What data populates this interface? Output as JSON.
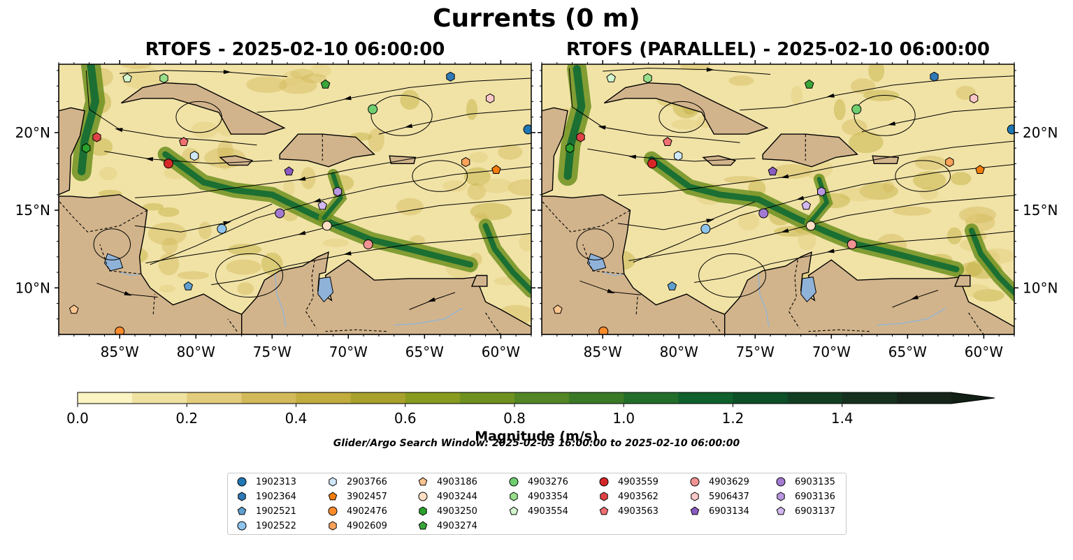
{
  "figure": {
    "title": "Currents (0 m)",
    "left_panel_title": "RTOFS - 2025-02-10 06:00:00",
    "right_panel_title": "RTOFS (PARALLEL) - 2025-02-10 06:00:00",
    "longitude_ticks": [
      "85°W",
      "80°W",
      "75°W",
      "70°W",
      "65°W",
      "60°W"
    ],
    "latitude_ticks": [
      "20°N",
      "15°N",
      "10°N"
    ],
    "colorbar": {
      "label": "Magnitude (m/s)",
      "ticks": [
        "0.0",
        "0.2",
        "0.4",
        "0.6",
        "0.8",
        "1.0",
        "1.2",
        "1.4"
      ],
      "colors": [
        "#fbf5c4",
        "#efe1a0",
        "#e3cd7c",
        "#d2b95a",
        "#c1ac3e",
        "#a8a12c",
        "#899b1e",
        "#6e9120",
        "#528624",
        "#3a7a26",
        "#226d2a",
        "#0f602c",
        "#0c4f28",
        "#123f24",
        "#16311f",
        "#16241a"
      ],
      "extend_color": "#111f14"
    },
    "search_window": "Glider/Argo Search Window: 2025-02-03 16:00:00 to 2025-02-10 06:00:00",
    "colors": {
      "land": "#d2b48c",
      "ocean_low": "#f1e3a6",
      "current_high": "#1b6f32",
      "lake": "#8fb2d8"
    }
  },
  "legend": [
    {
      "id": "1902313",
      "marker": "circle",
      "color": "#1f77b4"
    },
    {
      "id": "1902364",
      "marker": "hexagon",
      "color": "#2f79b6"
    },
    {
      "id": "1902521",
      "marker": "pentagon",
      "color": "#5f9fd0"
    },
    {
      "id": "1902522",
      "marker": "circle",
      "color": "#8ec4ec"
    },
    {
      "id": "2903766",
      "marker": "hexagon",
      "color": "#cfe7f7"
    },
    {
      "id": "3902457",
      "marker": "pentagon",
      "color": "#f27d0c"
    },
    {
      "id": "4902476",
      "marker": "circle",
      "color": "#ff8b2b"
    },
    {
      "id": "4902609",
      "marker": "hexagon",
      "color": "#fca25a"
    },
    {
      "id": "4903186",
      "marker": "pentagon",
      "color": "#fcc48e"
    },
    {
      "id": "4903244",
      "marker": "circle",
      "color": "#fde0c3"
    },
    {
      "id": "4903250",
      "marker": "hexagon",
      "color": "#2ca02c"
    },
    {
      "id": "4903274",
      "marker": "pentagon",
      "color": "#3aa63a"
    },
    {
      "id": "4903276",
      "marker": "circle",
      "color": "#6fcf6f"
    },
    {
      "id": "4903354",
      "marker": "hexagon",
      "color": "#98df8a"
    },
    {
      "id": "4903554",
      "marker": "pentagon",
      "color": "#d3f7cf"
    },
    {
      "id": "4903559",
      "marker": "circle",
      "color": "#d62728"
    },
    {
      "id": "4903562",
      "marker": "hexagon",
      "color": "#e04346"
    },
    {
      "id": "4903563",
      "marker": "pentagon",
      "color": "#ef6f72"
    },
    {
      "id": "4903629",
      "marker": "circle",
      "color": "#f29393"
    },
    {
      "id": "5906437",
      "marker": "hexagon",
      "color": "#fcc7c7"
    },
    {
      "id": "6903134",
      "marker": "pentagon",
      "color": "#8a5cbf"
    },
    {
      "id": "6903135",
      "marker": "circle",
      "color": "#a37ad1"
    },
    {
      "id": "6903136",
      "marker": "hexagon",
      "color": "#b996e0"
    },
    {
      "id": "6903137",
      "marker": "pentagon",
      "color": "#d2b8f0"
    }
  ],
  "floats": [
    {
      "id": "1902313",
      "lon": -58.2,
      "lat": 20.2
    },
    {
      "id": "1902364",
      "lon": -63.3,
      "lat": 23.6
    },
    {
      "id": "4903276",
      "lon": -68.4,
      "lat": 21.5
    },
    {
      "id": "4903274",
      "lon": -71.5,
      "lat": 23.1
    },
    {
      "id": "4903354",
      "lon": -82.1,
      "lat": 23.5
    },
    {
      "id": "4903554",
      "lon": -84.5,
      "lat": 23.5
    },
    {
      "id": "5906437",
      "lon": -60.7,
      "lat": 22.2
    },
    {
      "id": "4903562",
      "lon": -86.5,
      "lat": 19.7
    },
    {
      "id": "4903250",
      "lon": -87.2,
      "lat": 19.0
    },
    {
      "id": "4903563",
      "lon": -80.8,
      "lat": 19.4
    },
    {
      "id": "2903766",
      "lon": -80.1,
      "lat": 18.5
    },
    {
      "id": "4903559",
      "lon": -81.8,
      "lat": 18.0
    },
    {
      "id": "6903134",
      "lon": -73.9,
      "lat": 17.5
    },
    {
      "id": "6903135",
      "lon": -74.5,
      "lat": 14.8
    },
    {
      "id": "6903136",
      "lon": -70.7,
      "lat": 16.2
    },
    {
      "id": "6903137",
      "lon": -71.7,
      "lat": 15.3
    },
    {
      "id": "1902522",
      "lon": -78.3,
      "lat": 13.8
    },
    {
      "id": "4903244",
      "lon": -71.4,
      "lat": 14.0
    },
    {
      "id": "4903629",
      "lon": -68.7,
      "lat": 12.8
    },
    {
      "id": "4902609",
      "lon": -62.3,
      "lat": 18.1
    },
    {
      "id": "3902457",
      "lon": -60.3,
      "lat": 17.6
    },
    {
      "id": "1902521",
      "lon": -80.5,
      "lat": 10.1
    },
    {
      "id": "4903186",
      "lon": -88.0,
      "lat": 8.6
    },
    {
      "id": "4902476",
      "lon": -85.0,
      "lat": 7.2
    }
  ],
  "map_extent": {
    "lon": [
      -89,
      -58
    ],
    "lat": [
      7,
      24.4
    ]
  }
}
